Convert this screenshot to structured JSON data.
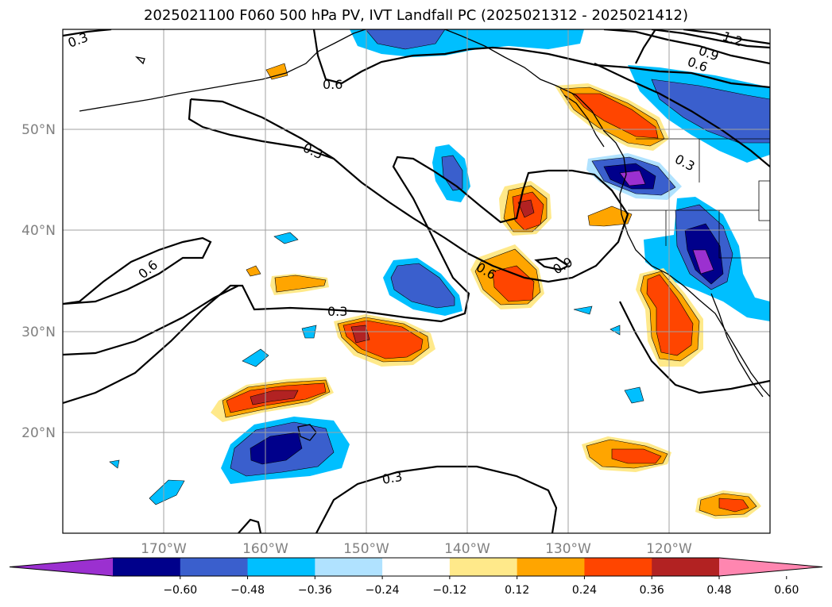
{
  "title": "2025021100 F060 500 hPa PV, IVT Landfall PC (2025021312 - 2025021412)",
  "map": {
    "lon_labels": [
      "170°W",
      "160°W",
      "150°W",
      "140°W",
      "130°W",
      "120°W"
    ],
    "lat_labels": [
      "50°N",
      "40°N",
      "30°N",
      "20°N"
    ],
    "contour_labels": [
      "0.3",
      "0.6",
      "0.3",
      "0.6",
      "0.3",
      "0.6",
      "0.9",
      "1.2",
      "0.9",
      "0.6",
      "0.3",
      "0.3"
    ]
  },
  "colorbar": {
    "tick_labels": [
      "−0.60",
      "−0.48",
      "−0.36",
      "−0.24",
      "−0.12",
      "0.12",
      "0.24",
      "0.36",
      "0.48",
      "0.60"
    ],
    "colors": [
      "#9b30d0",
      "#00008b",
      "#3a5fcd",
      "#00bfff",
      "#b0e2ff",
      "#ffffff",
      "#ffe98a",
      "#ffa500",
      "#ff4500",
      "#b22222",
      "#ff86b0"
    ]
  },
  "palette": {
    "purple": "#9b30d0",
    "navy": "#00008b",
    "blue": "#3a5fcd",
    "cyan": "#00bfff",
    "lightblue": "#b0e2ff",
    "yellow": "#ffe98a",
    "orange": "#ffa500",
    "redorange": "#ff4500",
    "firebrick": "#b22222"
  }
}
